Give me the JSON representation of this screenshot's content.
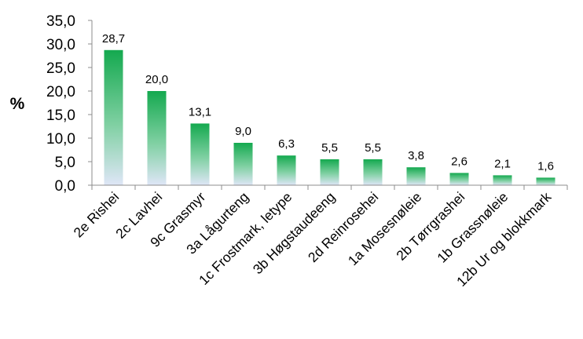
{
  "chart_data": {
    "type": "bar",
    "title": "",
    "xlabel": "",
    "ylabel": "%",
    "ylim": [
      0,
      35
    ],
    "yticks": [
      "0,0",
      "5,0",
      "10,0",
      "15,0",
      "20,0",
      "25,0",
      "30,0",
      "35,0"
    ],
    "grid": false,
    "legend": "none",
    "categories": [
      "2e Rishei",
      "2c Lavhei",
      "9c Grasmyr",
      "3a Lågurteng",
      "1c Frostmark, letype",
      "3b Høgstaudeeng",
      "2d Reinrosehei",
      "1a Mosesnøleie",
      "2b Tørrgrashei",
      "1b Grassnøleie",
      "12b Ur og blokkmark"
    ],
    "values": [
      28.7,
      20.0,
      13.1,
      9.0,
      6.3,
      5.5,
      5.5,
      3.8,
      2.6,
      2.1,
      1.6
    ],
    "value_labels": [
      "28,7",
      "20,0",
      "13,1",
      "9,0",
      "6,3",
      "5,5",
      "5,5",
      "3,8",
      "2,6",
      "2,1",
      "1,6"
    ],
    "colors": {
      "bar_top": "#14a94f",
      "bar_mid": "#7fd0a2",
      "bar_bottom": "#dfe6f7",
      "axis": "#8c8c8c"
    }
  }
}
